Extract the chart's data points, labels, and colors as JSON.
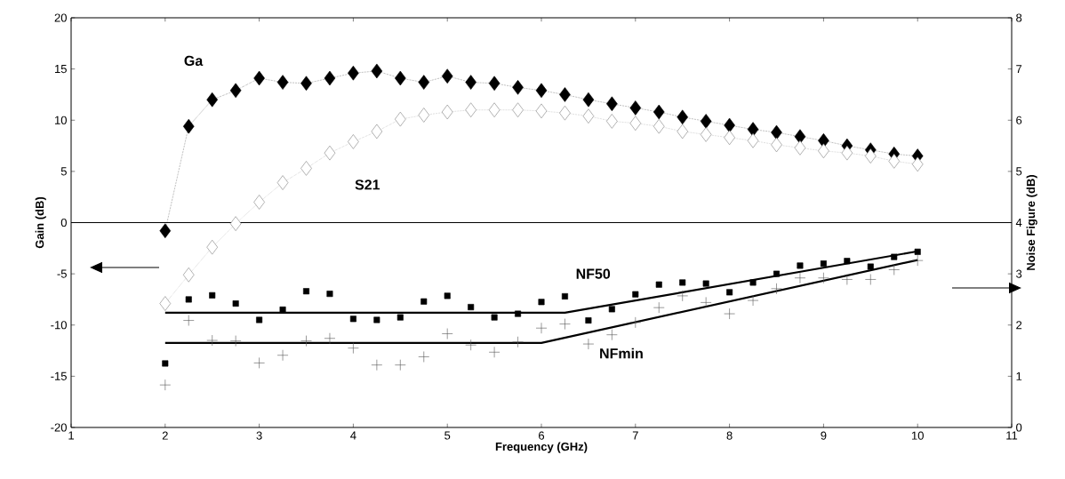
{
  "chart_data": {
    "type": "line",
    "xlabel": "Frequency (GHz)",
    "ylabel": "Gain (dB)",
    "y2label": "Noise Figure (dB)",
    "x": [
      2,
      2.25,
      2.5,
      2.75,
      3,
      3.25,
      3.5,
      3.75,
      4,
      4.25,
      4.5,
      4.75,
      5,
      5.25,
      5.5,
      5.75,
      6,
      6.25,
      6.5,
      6.75,
      7,
      7.25,
      7.5,
      7.75,
      8,
      8.25,
      8.5,
      8.75,
      9,
      9.25,
      9.5,
      9.75,
      10
    ],
    "series": [
      {
        "name": "Ga",
        "color": "#000000",
        "marker": "diamond",
        "line_style": "dotted",
        "values": [
          -0.8,
          9.4,
          12.0,
          12.9,
          14.1,
          13.7,
          13.6,
          14.1,
          14.6,
          14.8,
          14.1,
          13.7,
          14.3,
          13.7,
          13.6,
          13.2,
          12.9,
          12.5,
          12.0,
          11.6,
          11.2,
          10.8,
          10.3,
          9.9,
          9.5,
          9.1,
          8.8,
          8.4,
          8.0,
          7.5,
          7.1,
          6.7,
          6.5
        ]
      },
      {
        "name": "S21",
        "color": "#808080",
        "marker": "diamond",
        "line_style": "dotted",
        "values": [
          -7.9,
          -5.1,
          -2.4,
          -0.1,
          2.0,
          3.9,
          5.3,
          6.8,
          7.9,
          8.9,
          10.1,
          10.5,
          10.8,
          11.0,
          11.0,
          11.0,
          10.9,
          10.7,
          10.4,
          9.9,
          9.7,
          9.4,
          8.9,
          8.6,
          8.3,
          8.0,
          7.6,
          7.3,
          7.0,
          6.8,
          6.5,
          6.0,
          5.7
        ]
      },
      {
        "name": "NF50",
        "type": "scatter",
        "axis": "y2",
        "color": "#000000",
        "marker": "square",
        "values": [
          1.25,
          2.5,
          2.58,
          2.42,
          2.1,
          2.3,
          2.66,
          2.61,
          2.12,
          2.1,
          2.15,
          2.46,
          2.57,
          2.35,
          2.15,
          2.22,
          2.45,
          2.56,
          2.09,
          2.31,
          2.6,
          2.79,
          2.83,
          2.81,
          2.64,
          2.83,
          3.0,
          3.16,
          3.2,
          3.25,
          3.14,
          3.33,
          3.43
        ]
      },
      {
        "name": "NFmin",
        "type": "scatter",
        "axis": "y2",
        "color": "#555555",
        "marker": "cross",
        "values": [
          0.83,
          2.09,
          1.7,
          1.69,
          1.26,
          1.41,
          1.69,
          1.74,
          1.55,
          1.22,
          1.22,
          1.38,
          1.83,
          1.61,
          1.47,
          1.67,
          1.94,
          2.02,
          1.63,
          1.81,
          2.05,
          2.34,
          2.57,
          2.44,
          2.22,
          2.48,
          2.71,
          2.92,
          2.92,
          2.89,
          2.89,
          3.08,
          3.26
        ]
      },
      {
        "type": "line",
        "axis": "y2",
        "color": "#000000",
        "marker": "none",
        "line_style": "solid",
        "x": [
          2,
          6.25,
          10
        ],
        "values": [
          2.24,
          2.24,
          3.44
        ]
      },
      {
        "type": "line",
        "axis": "y2",
        "color": "#000000",
        "marker": "none",
        "line_style": "solid",
        "x": [
          2,
          6,
          10
        ],
        "values": [
          1.65,
          1.65,
          3.27
        ]
      }
    ],
    "xlim": [
      1,
      11
    ],
    "xticks": [
      1,
      2,
      3,
      4,
      5,
      6,
      7,
      8,
      9,
      10,
      11
    ],
    "ylim": [
      -20,
      20
    ],
    "yticks": [
      -20,
      -15,
      -10,
      -5,
      0,
      5,
      10,
      15,
      20
    ],
    "y2lim": [
      0,
      8
    ],
    "y2ticks": [
      0,
      1,
      2,
      3,
      4,
      5,
      6,
      7,
      8
    ],
    "ref_lines": [
      {
        "axis": "y",
        "value": 0,
        "color": "#000000"
      }
    ],
    "grid": false
  }
}
